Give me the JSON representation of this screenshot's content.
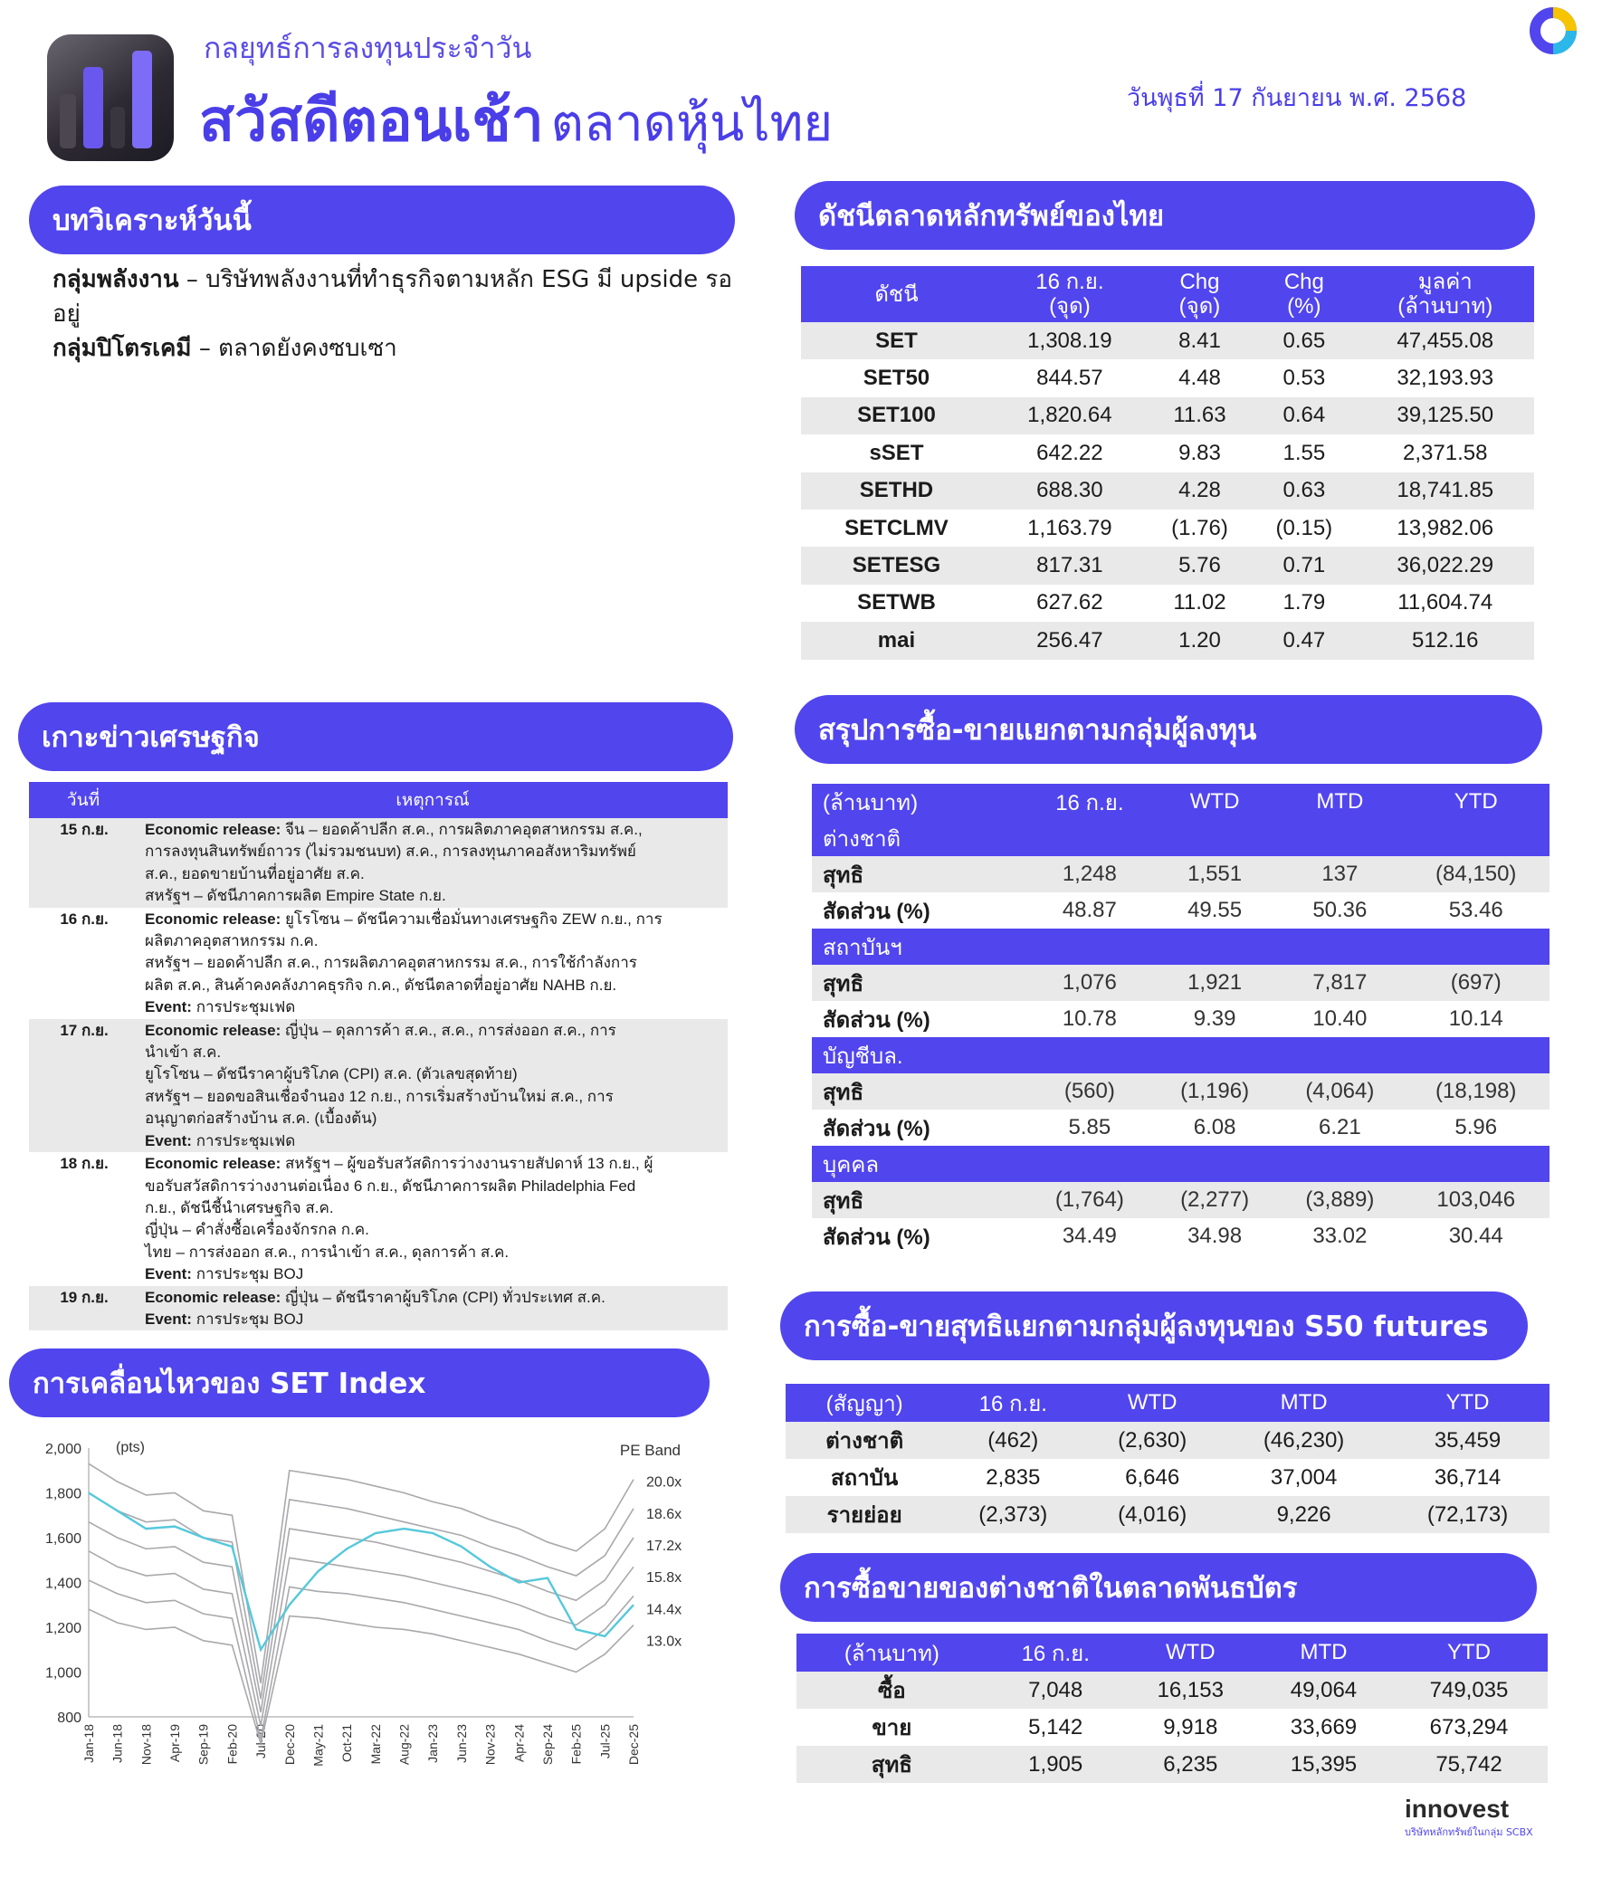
{
  "header": {
    "subtitle": "กลยุทธ์การลงทุนประจำวัน",
    "title_bold": "สวัสดีตอนเช้า",
    "title_light": "ตลาดหุ้นไทย",
    "date": "วันพุธที่ 17 กันยายน พ.ศ. 2568"
  },
  "analysis": {
    "title": "บทวิเคราะห์วันนี้",
    "items": [
      {
        "head": "กลุ่มพลังงาน",
        "text": " – บริษัทพลังงานที่ทำธุรกิจตามหลัก ESG มี upside รออยู่"
      },
      {
        "head": "กลุ่มปิโตรเคมี",
        "text": " – ตลาดยังคงซบเซา"
      }
    ]
  },
  "index_table": {
    "title": "ดัชนีตลาดหลักทรัพย์ของไทย",
    "headers": [
      "ดัชนี",
      "16 ก.ย.\n(จุด)",
      "Chg\n(จุด)",
      "Chg\n(%)",
      "มูลค่า\n(ล้านบาท)"
    ],
    "rows": [
      [
        "SET",
        "1,308.19",
        "8.41",
        "0.65",
        "47,455.08"
      ],
      [
        "SET50",
        "844.57",
        "4.48",
        "0.53",
        "32,193.93"
      ],
      [
        "SET100",
        "1,820.64",
        "11.63",
        "0.64",
        "39,125.50"
      ],
      [
        "sSET",
        "642.22",
        "9.83",
        "1.55",
        "2,371.58"
      ],
      [
        "SETHD",
        "688.30",
        "4.28",
        "0.63",
        "18,741.85"
      ],
      [
        "SETCLMV",
        "1,163.79",
        "(1.76)",
        "(0.15)",
        "13,982.06"
      ],
      [
        "SETESG",
        "817.31",
        "5.76",
        "0.71",
        "36,022.29"
      ],
      [
        "SETWB",
        "627.62",
        "11.02",
        "1.79",
        "11,604.74"
      ],
      [
        "mai",
        "256.47",
        "1.20",
        "0.47",
        "512.16"
      ]
    ]
  },
  "news": {
    "title": "เกาะข่าวเศรษฐกิจ",
    "headers": [
      "วันที่",
      "เหตุการณ์"
    ],
    "rows": [
      {
        "date": "15 ก.ย.",
        "lines": [
          {
            "k": "Economic release:",
            "t": " จีน – ยอดค้าปลีก ส.ค., การผลิตภาคอุตสาหกรรม ส.ค.,"
          },
          {
            "k": "",
            "t": "การลงทุนสินทรัพย์ถาวร (ไม่รวมชนบท) ส.ค., การลงทุนภาคอสังหาริมทรัพย์"
          },
          {
            "k": "",
            "t": "ส.ค., ยอดขายบ้านที่อยู่อาศัย ส.ค."
          },
          {
            "k": "",
            "t": "สหรัฐฯ – ดัชนีภาคการผลิต Empire State ก.ย."
          }
        ]
      },
      {
        "date": "16 ก.ย.",
        "lines": [
          {
            "k": "Economic release:",
            "t": " ยูโรโซน – ดัชนีความเชื่อมั่นทางเศรษฐกิจ ZEW ก.ย., การ"
          },
          {
            "k": "",
            "t": "ผลิตภาคอุตสาหกรรม ก.ค."
          },
          {
            "k": "",
            "t": "สหรัฐฯ – ยอดค้าปลีก ส.ค., การผลิตภาคอุตสาหกรรม ส.ค., การใช้กำลังการ"
          },
          {
            "k": "",
            "t": "ผลิต ส.ค., สินค้าคงคลังภาคธุรกิจ ก.ค., ดัชนีตลาดที่อยู่อาศัย NAHB ก.ย."
          },
          {
            "k": "Event:",
            "t": " การประชุมเฟด"
          }
        ]
      },
      {
        "date": "17 ก.ย.",
        "lines": [
          {
            "k": "Economic release:",
            "t": " ญี่ปุ่น – ดุลการค้า ส.ค., ส.ค., การส่งออก ส.ค., การ"
          },
          {
            "k": "",
            "t": "นำเข้า ส.ค."
          },
          {
            "k": "",
            "t": "ยูโรโซน – ดัชนีราคาผู้บริโภค (CPI) ส.ค. (ตัวเลขสุดท้าย)"
          },
          {
            "k": "",
            "t": "สหรัฐฯ – ยอดขอสินเชื่อจำนอง 12 ก.ย., การเริ่มสร้างบ้านใหม่ ส.ค., การ"
          },
          {
            "k": "",
            "t": "อนุญาตก่อสร้างบ้าน ส.ค. (เบื้องต้น)"
          },
          {
            "k": "Event:",
            "t": " การประชุมเฟด"
          }
        ]
      },
      {
        "date": "18 ก.ย.",
        "lines": [
          {
            "k": "Economic release:",
            "t": " สหรัฐฯ – ผู้ขอรับสวัสดิการว่างงานรายสัปดาห์ 13 ก.ย., ผู้"
          },
          {
            "k": "",
            "t": "ขอรับสวัสดิการว่างงานต่อเนื่อง 6 ก.ย., ดัชนีภาคการผลิต Philadelphia Fed"
          },
          {
            "k": "",
            "t": "ก.ย., ดัชนีชี้นำเศรษฐกิจ ส.ค."
          },
          {
            "k": "",
            "t": "ญี่ปุ่น – คำสั่งซื้อเครื่องจักรกล ก.ค."
          },
          {
            "k": "",
            "t": "ไทย – การส่งออก ส.ค., การนำเข้า ส.ค., ดุลการค้า ส.ค."
          },
          {
            "k": "Event:",
            "t": " การประชุม BOJ"
          }
        ]
      },
      {
        "date": "19 ก.ย.",
        "lines": [
          {
            "k": "Economic release:",
            "t": " ญี่ปุ่น – ดัชนีราคาผู้บริโภค (CPI) ทั่วประเทศ ส.ค."
          },
          {
            "k": "Event:",
            "t": " การประชุม BOJ"
          }
        ]
      }
    ]
  },
  "flows": {
    "title": "สรุปการซื้อ-ขายแยกตามกลุ่มผู้ลงทุน",
    "headers": [
      "(ล้านบาท)",
      "16 ก.ย.",
      "WTD",
      "MTD",
      "YTD"
    ],
    "net_label": "สุทธิ",
    "ratio_label": "สัดส่วน (%)",
    "groups": [
      {
        "name": "ต่างชาติ",
        "net": [
          "1,248",
          "1,551",
          "137",
          "(84,150)"
        ],
        "ratio": [
          "48.87",
          "49.55",
          "50.36",
          "53.46"
        ]
      },
      {
        "name": "สถาบันฯ",
        "net": [
          "1,076",
          "1,921",
          "7,817",
          "(697)"
        ],
        "ratio": [
          "10.78",
          "9.39",
          "10.40",
          "10.14"
        ]
      },
      {
        "name": "บัญชีบล.",
        "net": [
          "(560)",
          "(1,196)",
          "(4,064)",
          "(18,198)"
        ],
        "ratio": [
          "5.85",
          "6.08",
          "6.21",
          "5.96"
        ]
      },
      {
        "name": "บุคคล",
        "net": [
          "(1,764)",
          "(2,277)",
          "(3,889)",
          "103,046"
        ],
        "ratio": [
          "34.49",
          "34.98",
          "33.02",
          "30.44"
        ]
      }
    ]
  },
  "futures": {
    "title": "การซื้อ-ขายสุทธิแยกตามกลุ่มผู้ลงทุนของ S50 futures",
    "headers": [
      "(สัญญา)",
      "16 ก.ย.",
      "WTD",
      "MTD",
      "YTD"
    ],
    "rows": [
      [
        "ต่างชาติ",
        "(462)",
        "(2,630)",
        "(46,230)",
        "35,459"
      ],
      [
        "สถาบัน",
        "2,835",
        "6,646",
        "37,004",
        "36,714"
      ],
      [
        "รายย่อย",
        "(2,373)",
        "(4,016)",
        "9,226",
        "(72,173)"
      ]
    ]
  },
  "bonds": {
    "title": "การซื้อขายของต่างชาติในตลาดพันธบัตร",
    "headers": [
      "(ล้านบาท)",
      "16 ก.ย.",
      "WTD",
      "MTD",
      "YTD"
    ],
    "rows": [
      [
        "ซื้อ",
        "7,048",
        "16,153",
        "49,064",
        "749,035"
      ],
      [
        "ขาย",
        "5,142",
        "9,918",
        "33,669",
        "673,294"
      ],
      [
        "สุทธิ",
        "1,905",
        "6,235",
        "15,395",
        "75,742"
      ]
    ]
  },
  "set_chart": {
    "title": "การเคลื่อนไหวของ SET Index"
  },
  "chart_data": {
    "type": "line",
    "title": "",
    "ylabel": "(pts)",
    "legend_title": "PE Band",
    "ylim": [
      800,
      2000
    ],
    "yticks": [
      "2,000",
      "1,800",
      "1,600",
      "1,400",
      "1,200",
      "1,000",
      "800"
    ],
    "xticks": [
      "Jan-18",
      "Jun-18",
      "Nov-18",
      "Apr-19",
      "Sep-19",
      "Feb-20",
      "Jul-20",
      "Dec-20",
      "May-21",
      "Oct-21",
      "Mar-22",
      "Aug-22",
      "Jan-23",
      "Jun-23",
      "Nov-23",
      "Apr-24",
      "Sep-24",
      "Feb-25",
      "Jul-25",
      "Dec-25"
    ],
    "pe_bands": [
      "20.0x",
      "18.6x",
      "17.2x",
      "15.8x",
      "14.4x",
      "13.0x"
    ],
    "series": [
      {
        "values": [
          1800,
          1720,
          1640,
          1650,
          1600,
          1560,
          1100,
          1300,
          1450,
          1550,
          1620,
          1640,
          1620,
          1560,
          1470,
          1400,
          1420,
          1190,
          1160,
          1300
        ]
      }
    ],
    "band_values": [
      [
        1930,
        1850,
        1790,
        1800,
        1720,
        1700,
        950,
        1900,
        1880,
        1860,
        1830,
        1800,
        1760,
        1730,
        1680,
        1640,
        1580,
        1540,
        1640,
        1860
      ],
      [
        1800,
        1720,
        1670,
        1680,
        1600,
        1580,
        880,
        1770,
        1750,
        1730,
        1700,
        1670,
        1640,
        1610,
        1560,
        1520,
        1470,
        1430,
        1520,
        1730
      ],
      [
        1670,
        1600,
        1550,
        1560,
        1490,
        1470,
        820,
        1640,
        1620,
        1600,
        1580,
        1550,
        1520,
        1490,
        1450,
        1410,
        1360,
        1320,
        1410,
        1600
      ],
      [
        1540,
        1470,
        1430,
        1440,
        1370,
        1350,
        760,
        1510,
        1490,
        1470,
        1450,
        1430,
        1400,
        1370,
        1340,
        1300,
        1250,
        1210,
        1300,
        1470
      ],
      [
        1410,
        1350,
        1310,
        1320,
        1260,
        1240,
        700,
        1380,
        1360,
        1350,
        1330,
        1310,
        1280,
        1250,
        1220,
        1190,
        1140,
        1100,
        1190,
        1340
      ],
      [
        1280,
        1220,
        1190,
        1200,
        1140,
        1120,
        640,
        1250,
        1240,
        1220,
        1200,
        1190,
        1170,
        1140,
        1110,
        1080,
        1040,
        1000,
        1080,
        1210
      ]
    ]
  },
  "footer": {
    "logo_text": "innovest",
    "logo_sub": "บริษัทหลักทรัพย์ในกลุ่ม SCBX"
  }
}
